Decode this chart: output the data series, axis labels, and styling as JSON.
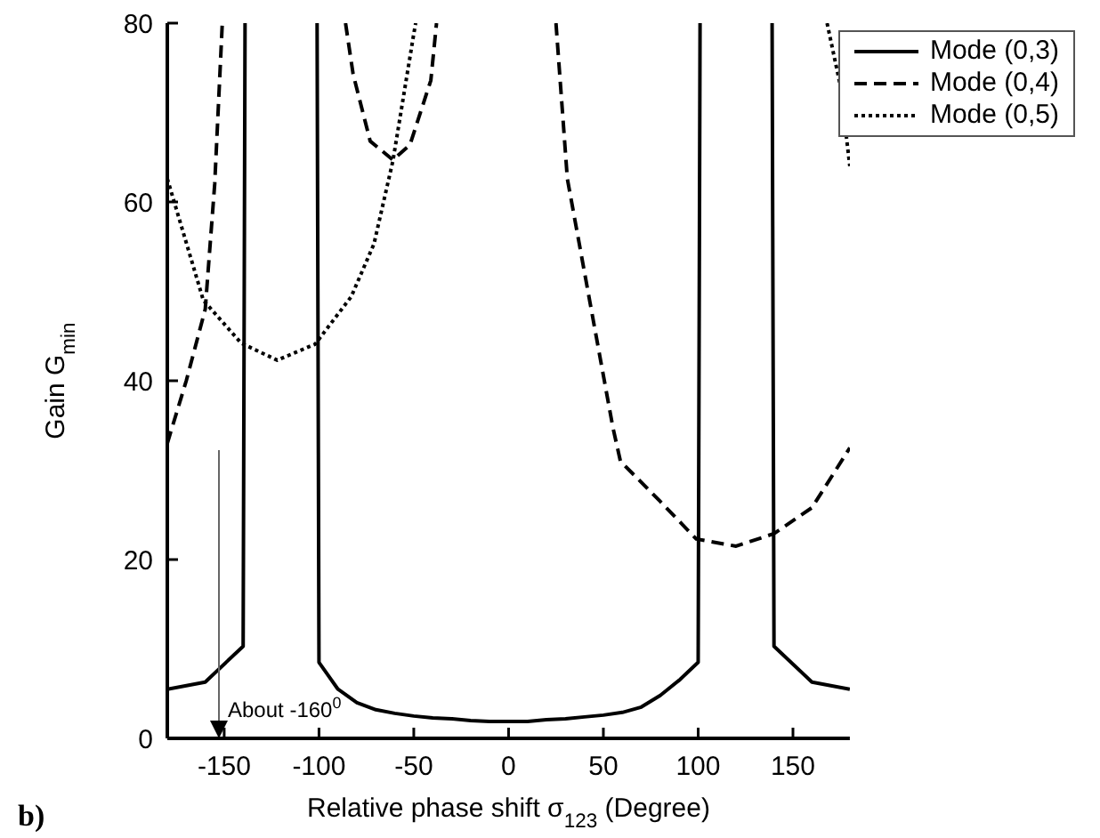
{
  "chart_data": {
    "type": "line",
    "xlabel": "Relative phase shift σ$_{123}$ (Degree)",
    "ylabel": "Gain G$_{min}$",
    "xlim": [
      -180,
      180
    ],
    "xticks": [
      -150,
      -100,
      -50,
      0,
      50,
      100,
      150
    ],
    "ylim": [
      0,
      80
    ],
    "yticks": [
      0,
      20,
      40,
      60,
      80
    ],
    "legend": "top right",
    "marker": "none",
    "series": [
      {
        "name": "Mode (0,3)",
        "color": "#000000",
        "line_style": "solid",
        "x": [
          -180,
          -160,
          -140,
          -139,
          -120,
          -101,
          -100,
          -90,
          -80,
          -70,
          -60,
          -50,
          -40,
          -30,
          -20,
          -10,
          0,
          10,
          20,
          30,
          40,
          50,
          60,
          70,
          80,
          90,
          100,
          101,
          120,
          139,
          140,
          160,
          180
        ],
        "values": [
          5.5,
          6.3,
          10.3,
          80,
          null,
          80,
          8.5,
          5.5,
          4,
          3.2,
          2.8,
          2.5,
          2.3,
          2.2,
          2,
          1.9,
          1.9,
          1.9,
          2.1,
          2.2,
          2.4,
          2.6,
          2.9,
          3.5,
          4.8,
          6.5,
          8.5,
          80,
          null,
          80,
          10.3,
          6.3,
          5.5
        ]
      },
      {
        "name": "Mode (0,4)",
        "color": "#000000",
        "line_style": "dashed",
        "x": [
          -180,
          -170,
          -160,
          -155,
          -151,
          -120,
          -86,
          -82,
          -73,
          -61,
          -52,
          -41,
          -38,
          0,
          25,
          31,
          43,
          55,
          59,
          80,
          99,
          120,
          140,
          160,
          180
        ],
        "values": [
          33,
          40,
          48,
          62,
          80,
          null,
          80,
          74.3,
          66.8,
          64.7,
          66.4,
          73.6,
          80,
          null,
          80,
          62.6,
          48.7,
          34.8,
          31,
          26.5,
          22.3,
          21.5,
          22.9,
          25.8,
          32.5
        ]
      },
      {
        "name": "Mode (0,5)",
        "color": "#000000",
        "line_style": "dotted",
        "x": [
          -180,
          -161,
          -141,
          -122,
          -102,
          -83,
          -71,
          -61,
          -50,
          -49,
          0,
          168,
          175,
          180
        ],
        "values": [
          62.6,
          49,
          44.2,
          42.3,
          44.1,
          49.4,
          55.3,
          64.6,
          78.8,
          80,
          null,
          80,
          73,
          64
        ]
      }
    ],
    "annotations": [
      "About -160$^{0}$",
      "b)"
    ]
  }
}
